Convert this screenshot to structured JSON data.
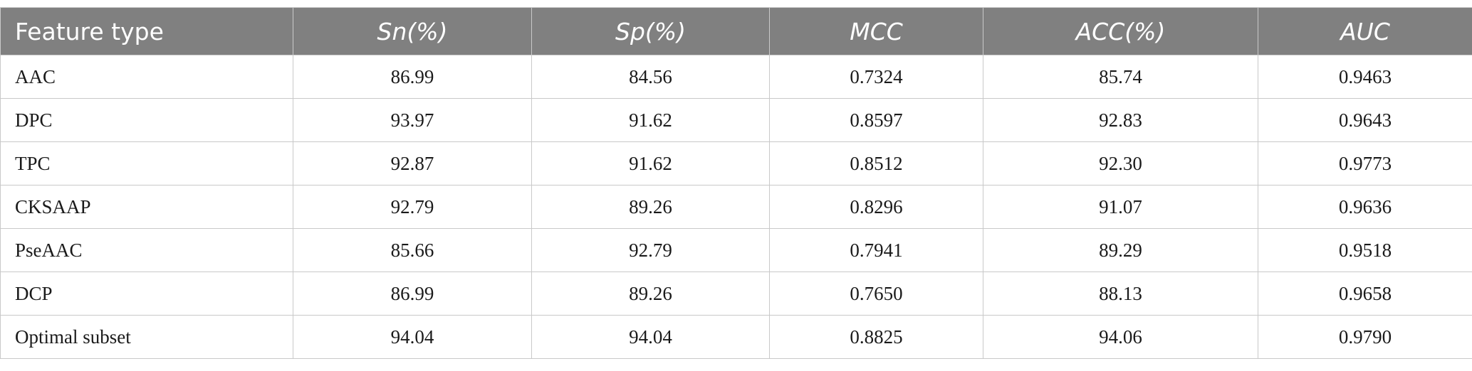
{
  "table": {
    "headers": [
      "Feature type",
      "Sn(%)",
      "Sp(%)",
      "MCC",
      "ACC(%)",
      "AUC"
    ],
    "rows": [
      [
        "AAC",
        "86.99",
        "84.56",
        "0.7324",
        "85.74",
        "0.9463"
      ],
      [
        "DPC",
        "93.97",
        "91.62",
        "0.8597",
        "92.83",
        "0.9643"
      ],
      [
        "TPC",
        "92.87",
        "91.62",
        "0.8512",
        "92.30",
        "0.9773"
      ],
      [
        "CKSAAP",
        "92.79",
        "89.26",
        "0.8296",
        "91.07",
        "0.9636"
      ],
      [
        "PseAAC",
        "85.66",
        "92.79",
        "0.7941",
        "89.29",
        "0.9518"
      ],
      [
        "DCP",
        "86.99",
        "89.26",
        "0.7650",
        "88.13",
        "0.9658"
      ],
      [
        "Optimal subset",
        "94.04",
        "94.04",
        "0.8825",
        "94.06",
        "0.9790"
      ]
    ]
  },
  "colors": {
    "header_bg": "#808080",
    "header_text": "#ffffff",
    "border": "#c9c9c9"
  }
}
